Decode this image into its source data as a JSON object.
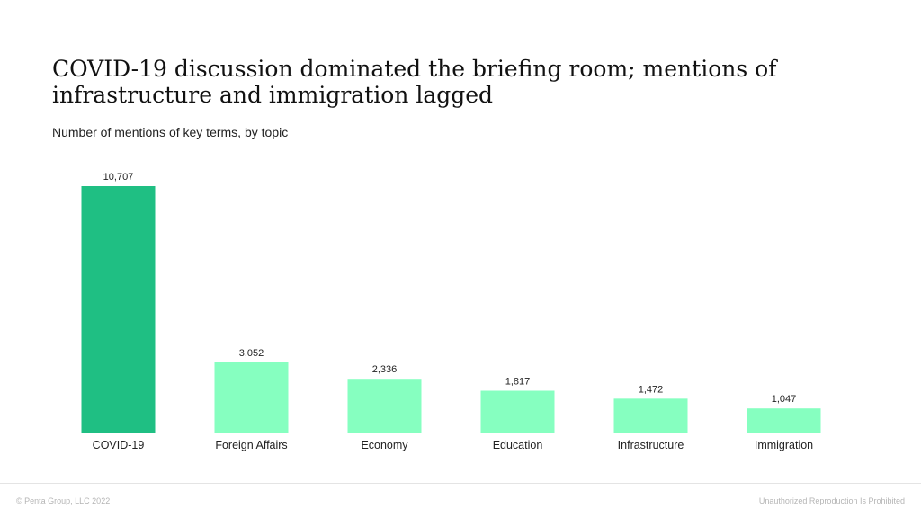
{
  "title": "COVID-19 discussion dominated the briefing room; mentions of infrastructure and immigration lagged",
  "subtitle": "Number of mentions of key terms, by topic",
  "footer": {
    "copyright": "© Penta Group, LLC 2022",
    "notice": "Unauthorized Reproduction Is Prohibited"
  },
  "colors": {
    "highlight": "#1fbf83",
    "bar": "#86ffc0",
    "axis": "#555555"
  },
  "chart_data": {
    "type": "bar",
    "title": "COVID-19 discussion dominated the briefing room; mentions of infrastructure and immigration lagged",
    "subtitle": "Number of mentions of key terms, by topic",
    "xlabel": "",
    "ylabel": "",
    "categories": [
      "COVID-19",
      "Foreign Affairs",
      "Economy",
      "Education",
      "Infrastructure",
      "Immigration"
    ],
    "values": [
      10707,
      3052,
      2336,
      1817,
      1472,
      1047
    ],
    "value_labels": [
      "10,707",
      "3,052",
      "2,336",
      "1,817",
      "1,472",
      "1,047"
    ],
    "highlighted_category": "COVID-19",
    "ylim": [
      0,
      10707
    ],
    "grid": false,
    "legend": "none"
  }
}
